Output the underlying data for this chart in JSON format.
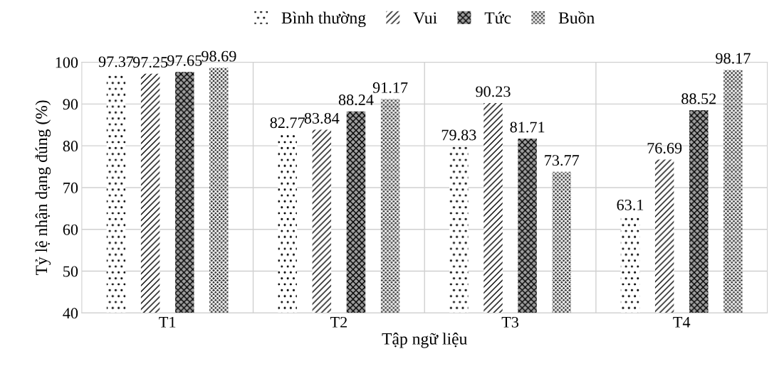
{
  "chart_data": {
    "type": "bar",
    "xlabel": "Tập ngữ liệu",
    "ylabel": "Tỷ lệ nhận dạng đúng (%)",
    "categories": [
      "T1",
      "T2",
      "T3",
      "T4"
    ],
    "series": [
      {
        "name": "Bình thường",
        "color": "#ffffff",
        "values": [
          97.37,
          82.77,
          79.83,
          63.1
        ]
      },
      {
        "name": "Vui",
        "color": "#ffffff",
        "values": [
          97.25,
          83.84,
          90.23,
          76.69
        ]
      },
      {
        "name": "Tức",
        "color": "#a0a0a0",
        "values": [
          97.65,
          88.24,
          81.71,
          88.52
        ]
      },
      {
        "name": "Buồn",
        "color": "#303030",
        "values": [
          98.69,
          91.17,
          73.77,
          98.17
        ]
      }
    ],
    "ylim": [
      40,
      100
    ],
    "yticks": [
      40,
      50,
      60,
      70,
      80,
      90,
      100
    ],
    "grid": true,
    "legend": "top",
    "data_labels": true
  }
}
